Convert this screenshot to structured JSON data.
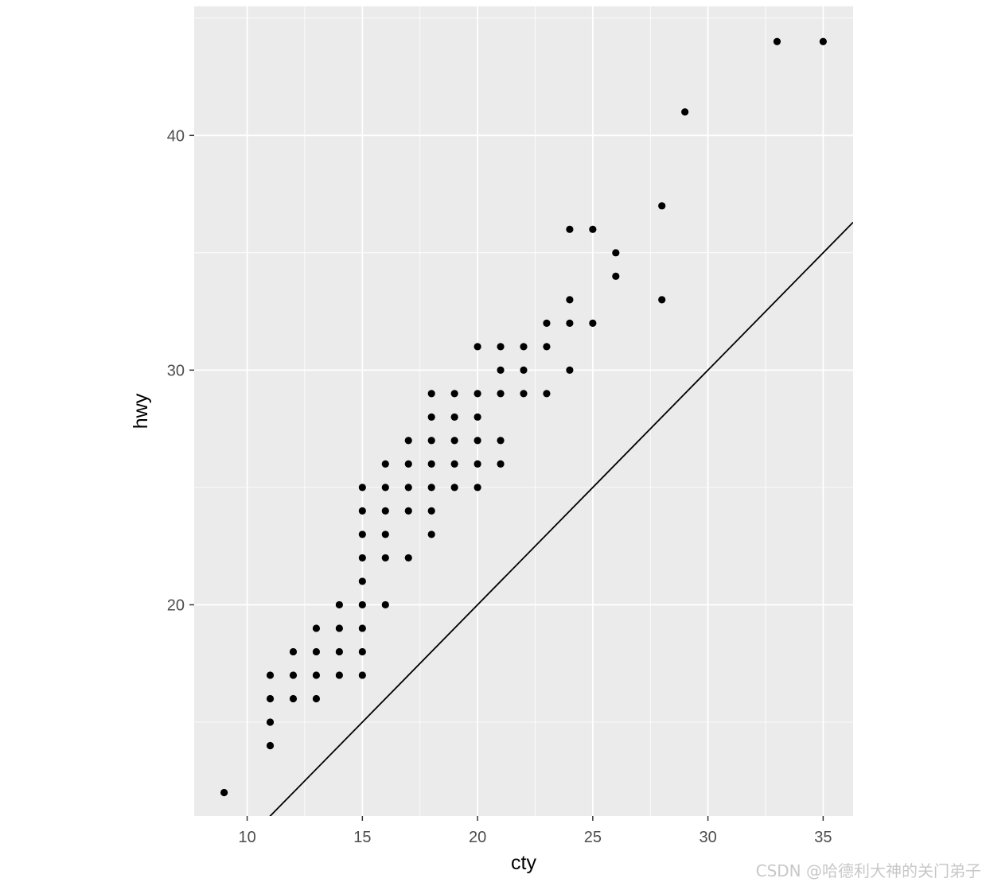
{
  "chart_data": {
    "type": "scatter",
    "title": "",
    "xlabel": "cty",
    "ylabel": "hwy",
    "xlim": [
      7.7,
      36.3
    ],
    "ylim": [
      11.0,
      45.5
    ],
    "x_ticks": [
      10,
      15,
      20,
      25,
      30,
      35
    ],
    "y_ticks": [
      20,
      30,
      40
    ],
    "grid": true,
    "reference_line": {
      "slope": 1,
      "intercept": 0
    },
    "points": [
      [
        9,
        12
      ],
      [
        11,
        14
      ],
      [
        11,
        15
      ],
      [
        11,
        16
      ],
      [
        11,
        17
      ],
      [
        12,
        16
      ],
      [
        12,
        17
      ],
      [
        12,
        18
      ],
      [
        13,
        16
      ],
      [
        13,
        17
      ],
      [
        13,
        18
      ],
      [
        13,
        19
      ],
      [
        14,
        17
      ],
      [
        14,
        18
      ],
      [
        14,
        19
      ],
      [
        14,
        20
      ],
      [
        15,
        17
      ],
      [
        15,
        18
      ],
      [
        15,
        19
      ],
      [
        15,
        20
      ],
      [
        15,
        21
      ],
      [
        15,
        22
      ],
      [
        15,
        23
      ],
      [
        15,
        24
      ],
      [
        15,
        25
      ],
      [
        16,
        20
      ],
      [
        16,
        22
      ],
      [
        16,
        23
      ],
      [
        16,
        24
      ],
      [
        16,
        25
      ],
      [
        16,
        26
      ],
      [
        17,
        22
      ],
      [
        17,
        24
      ],
      [
        17,
        25
      ],
      [
        17,
        26
      ],
      [
        17,
        27
      ],
      [
        18,
        23
      ],
      [
        18,
        24
      ],
      [
        18,
        25
      ],
      [
        18,
        26
      ],
      [
        18,
        27
      ],
      [
        18,
        28
      ],
      [
        18,
        29
      ],
      [
        19,
        25
      ],
      [
        19,
        26
      ],
      [
        19,
        27
      ],
      [
        19,
        28
      ],
      [
        19,
        29
      ],
      [
        20,
        25
      ],
      [
        20,
        26
      ],
      [
        20,
        27
      ],
      [
        20,
        28
      ],
      [
        20,
        29
      ],
      [
        20,
        31
      ],
      [
        21,
        26
      ],
      [
        21,
        27
      ],
      [
        21,
        29
      ],
      [
        21,
        30
      ],
      [
        21,
        31
      ],
      [
        22,
        29
      ],
      [
        22,
        30
      ],
      [
        22,
        31
      ],
      [
        23,
        29
      ],
      [
        23,
        31
      ],
      [
        23,
        32
      ],
      [
        24,
        30
      ],
      [
        24,
        32
      ],
      [
        24,
        33
      ],
      [
        24,
        36
      ],
      [
        25,
        32
      ],
      [
        25,
        36
      ],
      [
        26,
        34
      ],
      [
        26,
        35
      ],
      [
        28,
        33
      ],
      [
        28,
        37
      ],
      [
        29,
        41
      ],
      [
        33,
        44
      ],
      [
        35,
        44
      ]
    ]
  },
  "colors": {
    "panel": "#ebebeb",
    "grid_major": "#ffffff",
    "point": "#000000",
    "line": "#000000"
  },
  "watermark": "CSDN @哈德利大神的关门弟子"
}
